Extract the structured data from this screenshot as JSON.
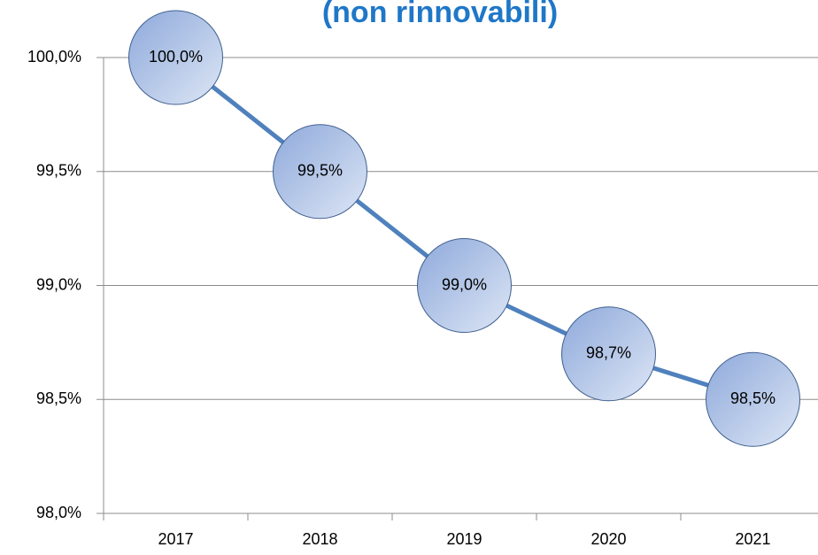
{
  "chart_data": {
    "type": "line",
    "title": "(non rinnovabili)",
    "categories": [
      "2017",
      "2018",
      "2019",
      "2020",
      "2021"
    ],
    "series": [
      {
        "name": null,
        "color": "#4f81bd",
        "values": [
          100.0,
          99.5,
          99.0,
          98.7,
          98.5
        ],
        "value_labels": [
          "100,0%",
          "99,5%",
          "99,0%",
          "98,7%",
          "98,5%"
        ]
      }
    ],
    "ylim": [
      98.0,
      100.0
    ],
    "yticks": [
      {
        "value": 98.0,
        "label": "98,0%"
      },
      {
        "value": 98.5,
        "label": "98,5%"
      },
      {
        "value": 99.0,
        "label": "99,0%"
      },
      {
        "value": 99.5,
        "label": "99,5%"
      },
      {
        "value": 100.0,
        "label": "100,0%"
      }
    ],
    "grid": true
  }
}
